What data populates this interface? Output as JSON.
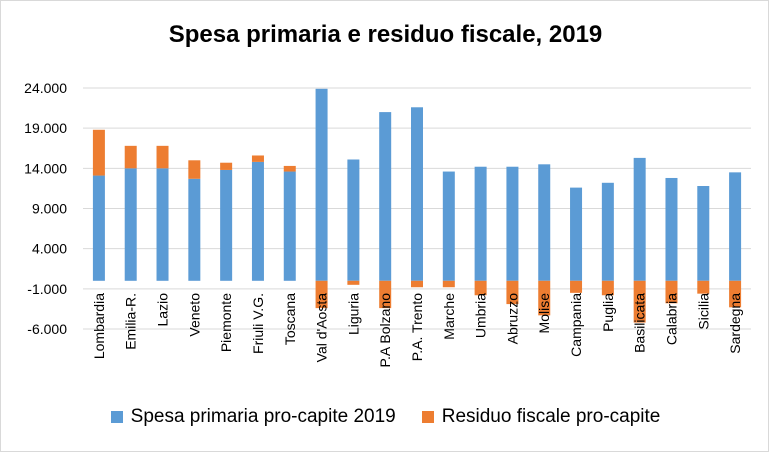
{
  "chart_data": {
    "type": "bar",
    "stacked": true,
    "title": "Spesa primaria e residuo fiscale, 2019",
    "xlabel": "",
    "ylabel": "",
    "ylim": [
      -6000,
      24000
    ],
    "yticks": [
      -6000,
      -1000,
      4000,
      9000,
      14000,
      19000,
      24000
    ],
    "ytick_labels": [
      "-6.000",
      "-1.000",
      "4.000",
      "9.000",
      "14.000",
      "19.000",
      "24.000"
    ],
    "grid": true,
    "legend_position": "bottom",
    "categories": [
      "Lombardia",
      "Emilia-R.",
      "Lazio",
      "Veneto",
      "Piemonte",
      "Friuli V.G.",
      "Toscana",
      "Val d'Aosta",
      "Liguria",
      "P.A Bolzano",
      "P.A. Trento",
      "Marche",
      "Umbria",
      "Abruzzo",
      "Molise",
      "Campania",
      "Puglia",
      "Basilicata",
      "Calabria",
      "Sicilia",
      "Sardegna"
    ],
    "series": [
      {
        "name": "Spesa primaria pro-capite 2019",
        "color": "#5b9bd5",
        "values": [
          13100,
          14000,
          14000,
          12700,
          13800,
          14800,
          13600,
          23900,
          15100,
          21000,
          21600,
          13600,
          14200,
          14200,
          14500,
          11600,
          12200,
          15300,
          12800,
          11800,
          13500
        ]
      },
      {
        "name": "Residuo fiscale pro-capite",
        "color": "#ed7d31",
        "values": [
          5700,
          2800,
          2800,
          2300,
          900,
          800,
          700,
          -3400,
          -500,
          -3400,
          -800,
          -800,
          -1800,
          -2900,
          -4300,
          -1500,
          -1800,
          -5200,
          -2800,
          -1600,
          -3300
        ]
      }
    ]
  }
}
